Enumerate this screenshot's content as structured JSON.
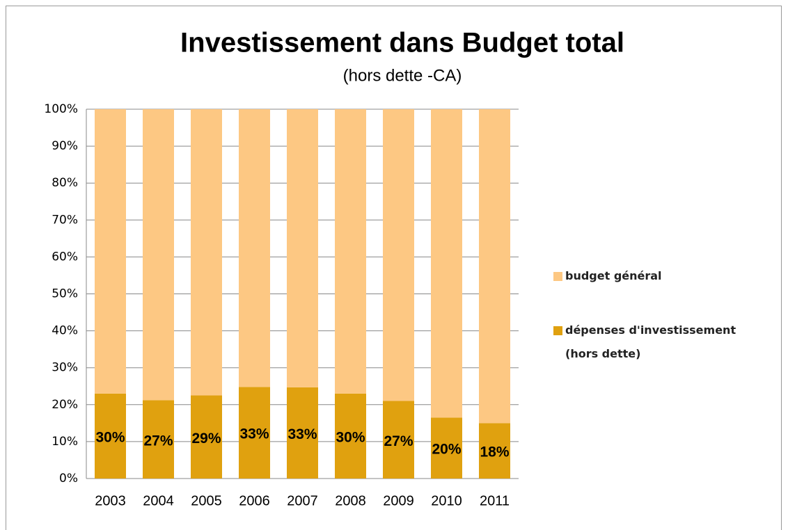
{
  "chart_data": {
    "type": "stacked_bar",
    "title": "Investissement  dans Budget total",
    "subtitle": "(hors dette -CA)",
    "categories": [
      "2003",
      "2004",
      "2005",
      "2006",
      "2007",
      "2008",
      "2009",
      "2010",
      "2011"
    ],
    "series": [
      {
        "name": "dépenses d'investissement (hors dette)",
        "color": "#e0a10f",
        "values": [
          23,
          21.2,
          22.5,
          24.8,
          24.7,
          23,
          21,
          16.5,
          15
        ]
      },
      {
        "name": "budget général",
        "color": "#fdc883",
        "values": [
          77,
          78.8,
          77.5,
          75.2,
          75.3,
          77,
          79,
          83.5,
          85
        ]
      }
    ],
    "annotations": [
      "30%",
      "27%",
      "29%",
      "33%",
      "33%",
      "30%",
      "27%",
      "20%",
      "18%"
    ],
    "ylim": [
      0,
      100
    ],
    "yticks": [
      {
        "value": 0,
        "label": "0%"
      },
      {
        "value": 10,
        "label": "10%"
      },
      {
        "value": 20,
        "label": "20%"
      },
      {
        "value": 30,
        "label": "30%"
      },
      {
        "value": 40,
        "label": "40%"
      },
      {
        "value": 50,
        "label": "50%"
      },
      {
        "value": 60,
        "label": "60%"
      },
      {
        "value": 70,
        "label": "70%"
      },
      {
        "value": 80,
        "label": "80%"
      },
      {
        "value": 90,
        "label": "90%"
      },
      {
        "value": 100,
        "label": "100%"
      }
    ],
    "legend": "right"
  }
}
